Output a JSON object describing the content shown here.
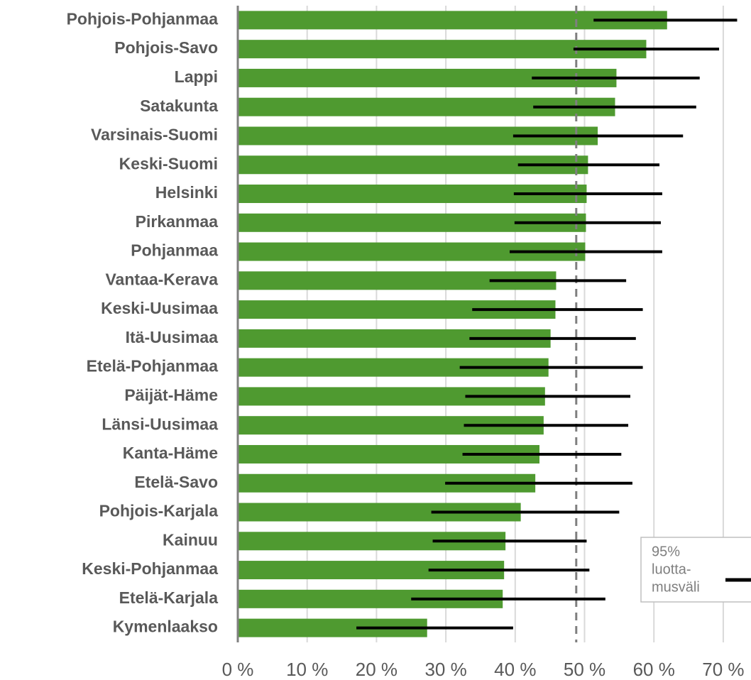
{
  "chart_data": {
    "type": "hbar",
    "categories": [
      "Pohjois-Pohjanmaa",
      "Pohjois-Savo",
      "Lappi",
      "Satakunta",
      "Varsinais-Suomi",
      "Keski-Suomi",
      "Helsinki",
      "Pirkanmaa",
      "Pohjanmaa",
      "Vantaa-Kerava",
      "Keski-Uusimaa",
      "Itä-Uusimaa",
      "Etelä-Pohjanmaa",
      "Päijät-Häme",
      "Länsi-Uusimaa",
      "Kanta-Häme",
      "Etelä-Savo",
      "Pohjois-Karjala",
      "Kainuu",
      "Keski-Pohjanmaa",
      "Etelä-Karjala",
      "Kymenlaakso"
    ],
    "values": [
      61.9,
      58.9,
      54.6,
      54.4,
      51.9,
      50.5,
      50.3,
      50.2,
      50.1,
      45.9,
      45.8,
      45.1,
      44.8,
      44.3,
      44.1,
      43.5,
      42.9,
      40.8,
      38.6,
      38.4,
      38.2,
      27.3
    ],
    "ci_low": [
      51.3,
      48.4,
      42.4,
      42.6,
      39.7,
      40.4,
      39.8,
      39.9,
      39.2,
      36.3,
      33.8,
      33.4,
      32.0,
      32.8,
      32.6,
      32.4,
      29.9,
      27.9,
      28.1,
      27.5,
      25.0,
      17.1
    ],
    "ci_high": [
      72.0,
      69.4,
      66.6,
      66.1,
      64.2,
      60.8,
      61.2,
      61.0,
      61.2,
      56.0,
      58.4,
      57.4,
      58.4,
      56.6,
      56.3,
      55.3,
      56.9,
      55.0,
      50.3,
      50.7,
      53.0,
      39.7
    ],
    "color": "#4f9a30",
    "ci_color": "#000000",
    "reference": 48.8,
    "reference_color": "#7f7f7f",
    "xlim": [
      0,
      74
    ],
    "xticks": [
      {
        "value": 0,
        "label": "0 %"
      },
      {
        "value": 10,
        "label": "10 %"
      },
      {
        "value": 20,
        "label": "20 %"
      },
      {
        "value": 30,
        "label": "30 %"
      },
      {
        "value": 40,
        "label": "40 %"
      },
      {
        "value": 50,
        "label": "50 %"
      },
      {
        "value": 60,
        "label": "60 %"
      },
      {
        "value": 70,
        "label": "70 %"
      }
    ],
    "grid": true,
    "legend": {
      "lines": [
        "95%",
        "luotta-",
        "musväli"
      ],
      "position": "lower right"
    }
  }
}
